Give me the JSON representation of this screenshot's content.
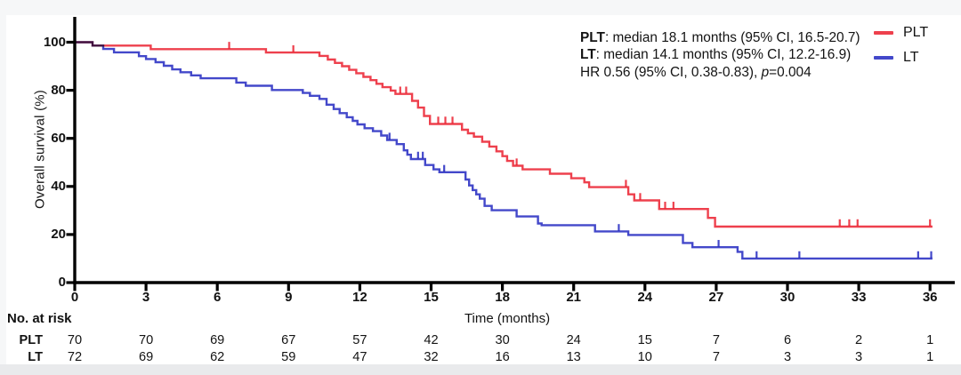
{
  "figure": {
    "y_axis_title": "Overall survival (%)",
    "x_axis_title": "Time (months)",
    "annotation": {
      "line1_bold": "PLT",
      "line1_rest": ": median 18.1 months (95% CI, 16.5-20.7)",
      "line2_bold": "LT",
      "line2_rest": ": median 14.1 months (95% CI, 12.2-16.9)",
      "line3_pre": "HR 0.56 (95% CI, 0.38-0.83), ",
      "line3_italic": "p",
      "line3_post": "=0.004"
    },
    "at_risk_header": "No. at risk",
    "colors": {
      "axis": "#000000",
      "text": "#121212",
      "plt": "#EE404D",
      "lt": "#4348CA"
    }
  },
  "chart_data": {
    "type": "line",
    "subtype": "kaplan-meier-step",
    "step": "after",
    "title": "",
    "xlabel": "Time (months)",
    "ylabel": "Overall survival (%)",
    "xlim": [
      0,
      36
    ],
    "ylim": [
      0,
      100
    ],
    "x_ticks": [
      0,
      3,
      6,
      9,
      12,
      15,
      18,
      21,
      24,
      27,
      30,
      33,
      36
    ],
    "y_ticks": [
      0,
      20,
      40,
      60,
      80,
      100
    ],
    "grid": false,
    "legend_position": "top-right",
    "stats_text": "PLT: median 18.1 months (95% CI, 16.5-20.7); LT: median 14.1 months (95% CI, 12.2-16.9); HR 0.56 (95% CI, 0.38-0.83), p=0.004",
    "series": [
      {
        "name": "PLT",
        "color": "#EE404D",
        "median_months": 18.1,
        "median_ci": "16.5-20.7",
        "steps": [
          [
            0,
            100
          ],
          [
            0.75,
            98.6
          ],
          [
            3.2,
            97.1
          ],
          [
            8.05,
            95.7
          ],
          [
            10.3,
            94.3
          ],
          [
            10.65,
            92.8
          ],
          [
            10.95,
            91.4
          ],
          [
            11.25,
            90.0
          ],
          [
            11.55,
            88.5
          ],
          [
            11.85,
            87.1
          ],
          [
            12.15,
            85.6
          ],
          [
            12.45,
            84.2
          ],
          [
            12.7,
            82.7
          ],
          [
            12.95,
            81.3
          ],
          [
            13.3,
            79.9
          ],
          [
            13.5,
            78.5
          ],
          [
            14.2,
            75.6
          ],
          [
            14.45,
            72.8
          ],
          [
            14.7,
            69.3
          ],
          [
            14.95,
            66.0
          ],
          [
            16.3,
            63.6
          ],
          [
            16.55,
            62.1
          ],
          [
            16.8,
            60.7
          ],
          [
            17.15,
            58.6
          ],
          [
            17.45,
            56.6
          ],
          [
            17.75,
            54.6
          ],
          [
            18.0,
            52.6
          ],
          [
            18.2,
            50.6
          ],
          [
            18.45,
            48.6
          ],
          [
            18.85,
            47.1
          ],
          [
            20.0,
            45.3
          ],
          [
            20.9,
            43.4
          ],
          [
            21.45,
            41.7
          ],
          [
            21.65,
            39.7
          ],
          [
            23.3,
            36.7
          ],
          [
            23.55,
            34.2
          ],
          [
            24.6,
            30.6
          ],
          [
            26.65,
            26.9
          ],
          [
            26.95,
            23.3
          ],
          [
            36.1,
            23.3
          ]
        ],
        "censor_marks": [
          [
            6.5,
            97.1
          ],
          [
            9.2,
            95.7
          ],
          [
            13.7,
            78.5
          ],
          [
            13.95,
            78.5
          ],
          [
            15.3,
            66.0
          ],
          [
            15.6,
            66.0
          ],
          [
            15.9,
            66.0
          ],
          [
            18.6,
            48.6
          ],
          [
            23.2,
            39.7
          ],
          [
            23.8,
            34.2
          ],
          [
            24.85,
            30.6
          ],
          [
            25.2,
            30.6
          ],
          [
            32.2,
            23.3
          ],
          [
            32.6,
            23.3
          ],
          [
            32.95,
            23.3
          ],
          [
            36.0,
            23.3
          ]
        ],
        "at_risk": [
          70,
          70,
          69,
          67,
          57,
          42,
          30,
          24,
          15,
          7,
          6,
          2,
          1
        ]
      },
      {
        "name": "LT",
        "color": "#4348CA",
        "median_months": 14.1,
        "median_ci": "12.2-16.9",
        "steps": [
          [
            0,
            100
          ],
          [
            0.75,
            98.6
          ],
          [
            1.2,
            97.2
          ],
          [
            1.65,
            95.8
          ],
          [
            2.7,
            94.2
          ],
          [
            3.0,
            93.0
          ],
          [
            3.4,
            91.7
          ],
          [
            3.75,
            90.2
          ],
          [
            4.1,
            88.7
          ],
          [
            4.45,
            87.5
          ],
          [
            4.9,
            86.2
          ],
          [
            5.3,
            85.0
          ],
          [
            6.8,
            83.2
          ],
          [
            7.2,
            81.9
          ],
          [
            8.3,
            80.1
          ],
          [
            9.6,
            78.9
          ],
          [
            9.9,
            77.7
          ],
          [
            10.3,
            76.4
          ],
          [
            10.6,
            74.0
          ],
          [
            10.9,
            72.2
          ],
          [
            11.15,
            70.5
          ],
          [
            11.45,
            68.8
          ],
          [
            11.7,
            67.3
          ],
          [
            11.9,
            65.8
          ],
          [
            12.2,
            64.2
          ],
          [
            12.55,
            63.0
          ],
          [
            12.9,
            61.2
          ],
          [
            13.15,
            59.3
          ],
          [
            13.55,
            57.6
          ],
          [
            13.85,
            55.0
          ],
          [
            14.0,
            53.2
          ],
          [
            14.15,
            51.4
          ],
          [
            14.75,
            48.9
          ],
          [
            15.1,
            47.1
          ],
          [
            15.35,
            45.9
          ],
          [
            16.45,
            42.9
          ],
          [
            16.6,
            40.4
          ],
          [
            16.75,
            38.5
          ],
          [
            16.9,
            36.7
          ],
          [
            17.05,
            34.9
          ],
          [
            17.25,
            31.9
          ],
          [
            17.55,
            30.1
          ],
          [
            18.6,
            27.5
          ],
          [
            19.5,
            24.6
          ],
          [
            19.65,
            23.9
          ],
          [
            21.9,
            21.3
          ],
          [
            23.3,
            19.8
          ],
          [
            25.6,
            16.5
          ],
          [
            26.0,
            14.7
          ],
          [
            27.9,
            12.8
          ],
          [
            28.1,
            10.0
          ],
          [
            36.1,
            10.0
          ]
        ],
        "censor_marks": [
          [
            13.25,
            59.3
          ],
          [
            14.45,
            51.4
          ],
          [
            14.65,
            51.4
          ],
          [
            15.55,
            45.9
          ],
          [
            22.9,
            21.3
          ],
          [
            27.1,
            14.7
          ],
          [
            28.7,
            10.0
          ],
          [
            30.5,
            10.0
          ],
          [
            35.5,
            10.0
          ],
          [
            36.05,
            10.0
          ]
        ],
        "at_risk": [
          72,
          69,
          62,
          59,
          47,
          32,
          16,
          13,
          10,
          7,
          3,
          3,
          1
        ]
      }
    ],
    "at_risk_table": {
      "header": "No. at risk",
      "time_points": [
        0,
        3,
        6,
        9,
        12,
        15,
        18,
        21,
        24,
        27,
        30,
        33,
        36
      ],
      "rows": [
        {
          "label": "PLT",
          "counts": [
            70,
            70,
            69,
            67,
            57,
            42,
            30,
            24,
            15,
            7,
            6,
            2,
            1
          ]
        },
        {
          "label": "LT",
          "counts": [
            72,
            69,
            62,
            59,
            47,
            32,
            16,
            13,
            10,
            7,
            3,
            3,
            1
          ]
        }
      ]
    }
  }
}
